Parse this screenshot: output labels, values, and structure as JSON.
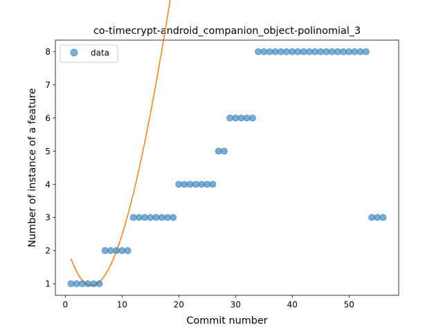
{
  "chart_data": {
    "type": "scatter",
    "title": "co-timecrypt-android_companion_object-polinomial_3",
    "xlabel": "Commit number",
    "ylabel": "Number of instance of a feature",
    "xlim": [
      -1.75,
      58.75
    ],
    "ylim": [
      0.65,
      8.35
    ],
    "x_ticks": [
      0,
      10,
      20,
      30,
      40,
      50
    ],
    "y_ticks": [
      1,
      2,
      3,
      4,
      5,
      6,
      7,
      8
    ],
    "grid": false,
    "legend": {
      "position": "upper-left",
      "entries": [
        "data"
      ]
    },
    "series": [
      {
        "name": "data",
        "kind": "scatter",
        "color": "#1f77b4",
        "x": [
          1,
          2,
          3,
          4,
          5,
          6,
          7,
          8,
          9,
          10,
          11,
          12,
          13,
          14,
          15,
          16,
          17,
          18,
          19,
          20,
          21,
          22,
          23,
          24,
          25,
          26,
          27,
          28,
          29,
          30,
          31,
          32,
          33,
          34,
          35,
          36,
          37,
          38,
          39,
          40,
          41,
          42,
          43,
          44,
          45,
          46,
          47,
          48,
          49,
          50,
          51,
          52,
          53,
          54,
          55,
          56
        ],
        "y": [
          1,
          1,
          1,
          1,
          1,
          1,
          2,
          2,
          2,
          2,
          2,
          3,
          3,
          3,
          3,
          3,
          3,
          3,
          3,
          4,
          4,
          4,
          4,
          4,
          4,
          4,
          5,
          5,
          6,
          6,
          6,
          6,
          6,
          8,
          8,
          8,
          8,
          8,
          8,
          8,
          8,
          8,
          8,
          8,
          8,
          8,
          8,
          8,
          8,
          8,
          8,
          8,
          8,
          3,
          3,
          3
        ]
      },
      {
        "kind": "line",
        "color": "#ff7f0e",
        "x": [
          1,
          56
        ],
        "polynomial_coefficients": [
          2.2883,
          -0.6017,
          0.07173,
          -0.0009675
        ]
      }
    ]
  }
}
